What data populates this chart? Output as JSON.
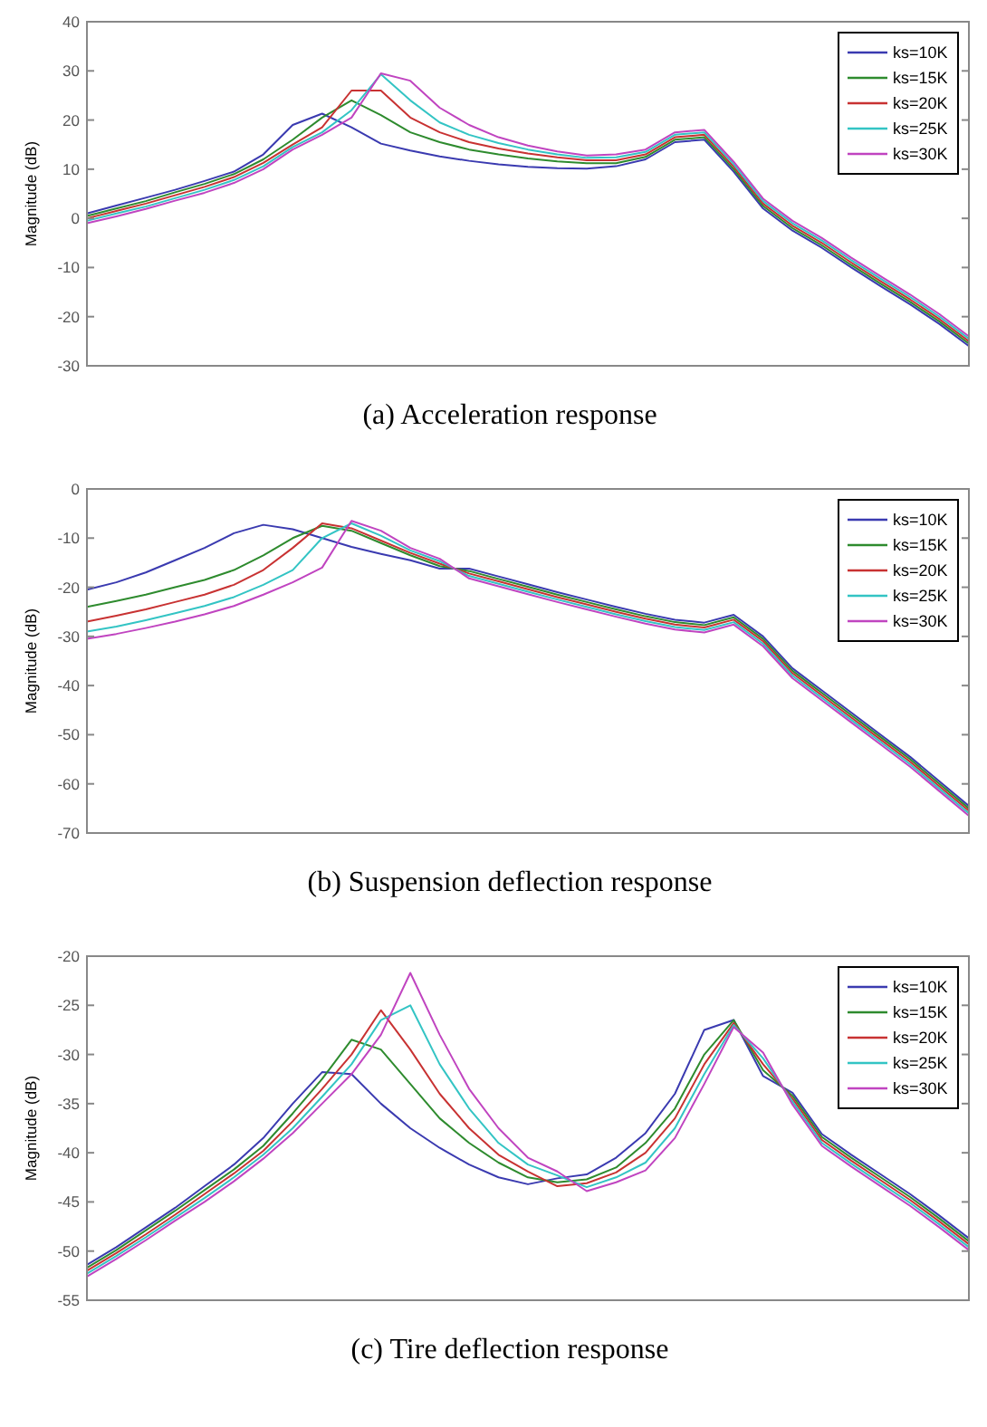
{
  "chart_data": [
    {
      "type": "line",
      "title": "(a) Acceleration response",
      "ylabel": "Magnitude (dB)",
      "categories": [
        null,
        null,
        null,
        null,
        null,
        null,
        null,
        null,
        null,
        null,
        null,
        null,
        null,
        null,
        null,
        null,
        null,
        null,
        null,
        null,
        null,
        null,
        null,
        null,
        null,
        null,
        null,
        null,
        null,
        null,
        null
      ],
      "ylim": [
        -30,
        40
      ],
      "yticks": [
        -30,
        -20,
        -10,
        0,
        10,
        20,
        30,
        40
      ],
      "legend": "top right",
      "grid": false,
      "series": [
        {
          "name": "ks=10K",
          "color": "#3a3ab0",
          "values": [
            1,
            2.6,
            4.2,
            5.8,
            7.6,
            9.5,
            13,
            19,
            21.3,
            18.5,
            15.2,
            13.8,
            12.6,
            11.7,
            11,
            10.5,
            10.2,
            10.1,
            10.6,
            12,
            15.5,
            16,
            9.5,
            2,
            -2.5,
            -6,
            -10,
            -13.8,
            -17.5,
            -21.5,
            -26
          ]
        },
        {
          "name": "ks=15K",
          "color": "#2e8b2e",
          "values": [
            0.5,
            2,
            3.5,
            5.3,
            7,
            9,
            12,
            16,
            20.5,
            24,
            21,
            17.5,
            15.5,
            14,
            13,
            12.2,
            11.6,
            11.2,
            11.2,
            12.5,
            16,
            16.5,
            10,
            2.5,
            -2,
            -5.5,
            -9.5,
            -13.3,
            -17,
            -21,
            -25.5
          ]
        },
        {
          "name": "ks=20K",
          "color": "#c83232",
          "values": [
            0,
            1.5,
            3,
            4.7,
            6.4,
            8.4,
            11.3,
            15,
            18.5,
            26,
            26,
            20.5,
            17.5,
            15.5,
            14.2,
            13.2,
            12.4,
            11.8,
            11.8,
            13,
            16.5,
            17,
            10.5,
            3,
            -1.5,
            -5,
            -9,
            -12.8,
            -16.5,
            -20.5,
            -25
          ]
        },
        {
          "name": "ks=25K",
          "color": "#33c4c4",
          "values": [
            -0.5,
            1,
            2.4,
            4.1,
            5.8,
            7.8,
            10.6,
            14.5,
            17.5,
            22,
            29.3,
            24,
            19.5,
            17,
            15.3,
            14,
            13,
            12.3,
            12.4,
            13.5,
            17,
            17.5,
            11,
            3.5,
            -1,
            -4.5,
            -8.5,
            -12.3,
            -16,
            -20,
            -24.5
          ]
        },
        {
          "name": "ks=30K",
          "color": "#c044c0",
          "values": [
            -1,
            0.4,
            1.9,
            3.6,
            5.2,
            7.2,
            10,
            14,
            17,
            20.5,
            29.5,
            28,
            22.5,
            19,
            16.5,
            14.8,
            13.6,
            12.8,
            13,
            14,
            17.5,
            18,
            11.5,
            4,
            -0.5,
            -4,
            -8,
            -11.8,
            -15.5,
            -19.5,
            -24
          ]
        }
      ]
    },
    {
      "type": "line",
      "title": "(b) Suspension deflection response",
      "ylabel": "Magnitude (dB)",
      "categories": [
        null,
        null,
        null,
        null,
        null,
        null,
        null,
        null,
        null,
        null,
        null,
        null,
        null,
        null,
        null,
        null,
        null,
        null,
        null,
        null,
        null,
        null,
        null,
        null,
        null,
        null,
        null,
        null,
        null,
        null,
        null
      ],
      "ylim": [
        -70,
        0
      ],
      "yticks": [
        -70,
        -60,
        -50,
        -40,
        -30,
        -20,
        -10,
        0
      ],
      "legend": "top right",
      "grid": false,
      "series": [
        {
          "name": "ks=10K",
          "color": "#3a3ab0",
          "values": [
            -20.5,
            -19,
            -17,
            -14.5,
            -12,
            -9,
            -7.3,
            -8.2,
            -10,
            -11.8,
            -13.2,
            -14.5,
            -16.2,
            -16.2,
            -17.8,
            -19.4,
            -21,
            -22.5,
            -24,
            -25.4,
            -26.6,
            -27.2,
            -25.6,
            -30,
            -36.5,
            -41,
            -45.5,
            -50,
            -54.5,
            -59.5,
            -64.5
          ]
        },
        {
          "name": "ks=15K",
          "color": "#2e8b2e",
          "values": [
            -24,
            -22.8,
            -21.5,
            -20,
            -18.5,
            -16.5,
            -13.5,
            -10,
            -7.5,
            -8.5,
            -11,
            -13.5,
            -15.7,
            -16.7,
            -18.3,
            -19.9,
            -21.5,
            -23,
            -24.5,
            -25.9,
            -27.1,
            -27.7,
            -26.1,
            -30.5,
            -37,
            -41.5,
            -46,
            -50.5,
            -55,
            -60,
            -65
          ]
        },
        {
          "name": "ks=20K",
          "color": "#c83232",
          "values": [
            -27,
            -25.8,
            -24.5,
            -23,
            -21.5,
            -19.5,
            -16.5,
            -12,
            -7,
            -8,
            -10.5,
            -13,
            -15.2,
            -17.2,
            -18.8,
            -20.4,
            -22,
            -23.5,
            -25,
            -26.4,
            -27.6,
            -28.2,
            -26.6,
            -31,
            -37.5,
            -42,
            -46.5,
            -51,
            -55.5,
            -60.5,
            -65.5
          ]
        },
        {
          "name": "ks=25K",
          "color": "#33c4c4",
          "values": [
            -29,
            -28,
            -26.7,
            -25.3,
            -23.8,
            -22,
            -19.5,
            -16.5,
            -10,
            -7,
            -9.5,
            -12.5,
            -14.7,
            -17.7,
            -19.3,
            -20.9,
            -22.5,
            -24,
            -25.5,
            -26.9,
            -28.1,
            -28.7,
            -27.1,
            -31.5,
            -38,
            -42.5,
            -47,
            -51.5,
            -56,
            -61,
            -66
          ]
        },
        {
          "name": "ks=30K",
          "color": "#c044c0",
          "values": [
            -30.5,
            -29.5,
            -28.3,
            -27,
            -25.5,
            -23.8,
            -21.5,
            -19,
            -16,
            -6.5,
            -8.5,
            -12,
            -14.2,
            -18.2,
            -19.8,
            -21.4,
            -23,
            -24.5,
            -26,
            -27.4,
            -28.6,
            -29.2,
            -27.6,
            -32,
            -38.5,
            -43,
            -47.5,
            -52,
            -56.5,
            -61.5,
            -66.5
          ]
        }
      ]
    },
    {
      "type": "line",
      "title": "(c) Tire deflection response",
      "ylabel": "Magnitude (dB)",
      "categories": [
        null,
        null,
        null,
        null,
        null,
        null,
        null,
        null,
        null,
        null,
        null,
        null,
        null,
        null,
        null,
        null,
        null,
        null,
        null,
        null,
        null,
        null,
        null,
        null,
        null,
        null,
        null,
        null,
        null,
        null,
        null
      ],
      "ylim": [
        -55,
        -20
      ],
      "yticks": [
        -55,
        -50,
        -45,
        -40,
        -35,
        -30,
        -25,
        -20
      ],
      "legend": "top right",
      "grid": false,
      "series": [
        {
          "name": "ks=10K",
          "color": "#3a3ab0",
          "values": [
            -51.4,
            -49.6,
            -47.6,
            -45.6,
            -43.4,
            -41.2,
            -38.5,
            -35,
            -31.8,
            -32,
            -35,
            -37.5,
            -39.5,
            -41.2,
            -42.5,
            -43.2,
            -42.6,
            -42.2,
            -40.5,
            -38,
            -34,
            -27.5,
            -26.5,
            -32.2,
            -33.9,
            -38.1,
            -40.2,
            -42.2,
            -44.2,
            -46.4,
            -48.7
          ]
        },
        {
          "name": "ks=15K",
          "color": "#2e8b2e",
          "values": [
            -51.7,
            -49.9,
            -47.9,
            -45.9,
            -43.8,
            -41.7,
            -39.3,
            -36,
            -32.5,
            -28.5,
            -29.5,
            -33,
            -36.5,
            -39,
            -41,
            -42.5,
            -43,
            -42.7,
            -41.5,
            -39,
            -35.5,
            -30,
            -26.5,
            -31.6,
            -34.2,
            -38.4,
            -40.5,
            -42.5,
            -44.5,
            -46.7,
            -49
          ]
        },
        {
          "name": "ks=20K",
          "color": "#c83232",
          "values": [
            -52,
            -50.2,
            -48.3,
            -46.3,
            -44.2,
            -42.1,
            -39.8,
            -36.8,
            -33.5,
            -30,
            -25.5,
            -29.5,
            -34,
            -37.5,
            -40.2,
            -41.9,
            -43.4,
            -43.1,
            -42,
            -40,
            -36.5,
            -31,
            -26.8,
            -31,
            -34.5,
            -38.7,
            -40.8,
            -42.8,
            -44.8,
            -47,
            -49.3
          ]
        },
        {
          "name": "ks=25K",
          "color": "#33c4c4",
          "values": [
            -52.3,
            -50.5,
            -48.6,
            -46.6,
            -44.6,
            -42.5,
            -40.2,
            -37.5,
            -34.3,
            -31,
            -26.5,
            -25,
            -31,
            -35.5,
            -39,
            -41.2,
            -42.3,
            -43.5,
            -42.5,
            -41,
            -37.5,
            -32,
            -27,
            -30.4,
            -34.8,
            -39,
            -41.1,
            -43.1,
            -45.1,
            -47.3,
            -49.6
          ]
        },
        {
          "name": "ks=30K",
          "color": "#c044c0",
          "values": [
            -52.6,
            -50.8,
            -48.9,
            -46.9,
            -45,
            -42.9,
            -40.6,
            -38,
            -35,
            -32,
            -28,
            -21.7,
            -28,
            -33.5,
            -37.5,
            -40.5,
            -41.9,
            -43.9,
            -43,
            -41.8,
            -38.5,
            -33,
            -27.2,
            -29.8,
            -35.1,
            -39.3,
            -41.4,
            -43.4,
            -45.4,
            -47.6,
            -49.9
          ]
        }
      ]
    }
  ]
}
